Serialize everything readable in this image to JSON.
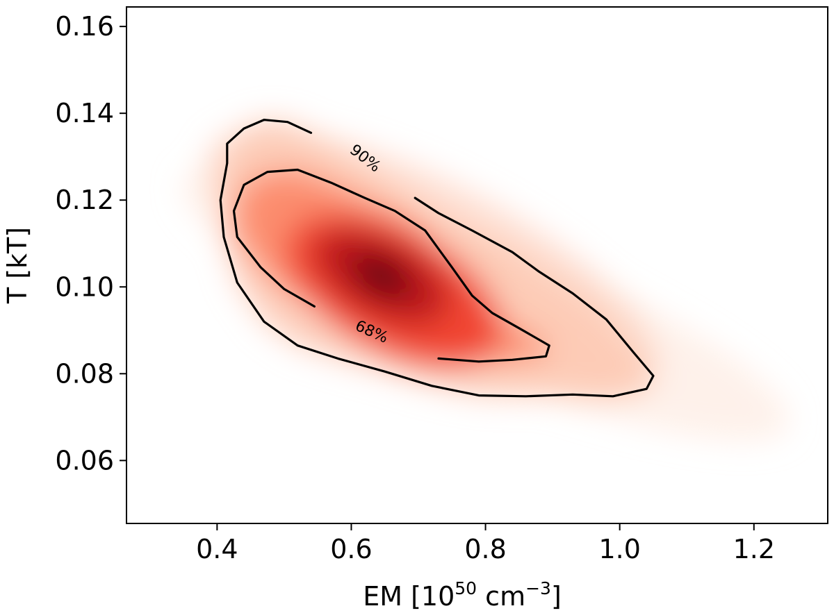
{
  "chart_data": {
    "type": "heatmap",
    "title": "",
    "xlabel": {
      "prefix": "EM [10",
      "exp1": "50",
      "mid": " cm",
      "exp2": "−3",
      "suffix": "]"
    },
    "ylabel": "T [kT]",
    "xlim": [
      0.265,
      1.31
    ],
    "ylim": [
      0.0455,
      0.1645
    ],
    "xticks": [
      {
        "value": 0.4,
        "label": "0.4"
      },
      {
        "value": 0.6,
        "label": "0.6"
      },
      {
        "value": 0.8,
        "label": "0.8"
      },
      {
        "value": 1.0,
        "label": "1.0"
      },
      {
        "value": 1.2,
        "label": "1.2"
      }
    ],
    "yticks": [
      {
        "value": 0.06,
        "label": "0.06"
      },
      {
        "value": 0.08,
        "label": "0.08"
      },
      {
        "value": 0.1,
        "label": "0.10"
      },
      {
        "value": 0.12,
        "label": "0.12"
      },
      {
        "value": 0.14,
        "label": "0.14"
      },
      {
        "value": 0.16,
        "label": "0.16"
      }
    ],
    "colormap": [
      "#fff5f0",
      "#fdcab5",
      "#fc8a6a",
      "#f14432",
      "#bc141a",
      "#67000d"
    ],
    "density_peak": {
      "em": 0.645,
      "t": 0.1025
    },
    "grid": false,
    "contours": [
      {
        "name": "68%",
        "label": "68%",
        "label_pos": {
          "em": 0.63,
          "t": 0.0895
        },
        "label_angle": 24,
        "points": [
          [
            0.545,
            0.0955
          ],
          [
            0.5,
            0.0995
          ],
          [
            0.465,
            0.1045
          ],
          [
            0.43,
            0.1115
          ],
          [
            0.425,
            0.1175
          ],
          [
            0.44,
            0.1235
          ],
          [
            0.475,
            0.1265
          ],
          [
            0.52,
            0.127
          ],
          [
            0.57,
            0.124
          ],
          [
            0.62,
            0.1205
          ],
          [
            0.665,
            0.1175
          ],
          [
            0.71,
            0.113
          ],
          [
            0.75,
            0.1045
          ],
          [
            0.78,
            0.098
          ],
          [
            0.81,
            0.094
          ],
          [
            0.85,
            0.0905
          ],
          [
            0.895,
            0.0865
          ],
          [
            0.89,
            0.084
          ],
          [
            0.84,
            0.0832
          ],
          [
            0.79,
            0.0828
          ],
          [
            0.73,
            0.0835
          ]
        ]
      },
      {
        "name": "90%",
        "label": "90%",
        "label_pos": {
          "em": 0.62,
          "t": 0.1295
        },
        "label_angle": 38,
        "points": [
          [
            0.695,
            0.1205
          ],
          [
            0.73,
            0.117
          ],
          [
            0.78,
            0.113
          ],
          [
            0.84,
            0.108
          ],
          [
            0.88,
            0.1035
          ],
          [
            0.93,
            0.0985
          ],
          [
            0.98,
            0.0925
          ],
          [
            1.02,
            0.085
          ],
          [
            1.05,
            0.0795
          ],
          [
            1.04,
            0.0765
          ],
          [
            0.99,
            0.0748
          ],
          [
            0.93,
            0.0752
          ],
          [
            0.86,
            0.0748
          ],
          [
            0.79,
            0.075
          ],
          [
            0.72,
            0.0772
          ],
          [
            0.65,
            0.0805
          ],
          [
            0.58,
            0.0835
          ],
          [
            0.52,
            0.0865
          ],
          [
            0.47,
            0.092
          ],
          [
            0.43,
            0.101
          ],
          [
            0.41,
            0.1115
          ],
          [
            0.405,
            0.12
          ],
          [
            0.415,
            0.1285
          ],
          [
            0.415,
            0.133
          ],
          [
            0.44,
            0.1365
          ],
          [
            0.47,
            0.1385
          ],
          [
            0.505,
            0.138
          ],
          [
            0.54,
            0.1355
          ]
        ]
      }
    ]
  }
}
